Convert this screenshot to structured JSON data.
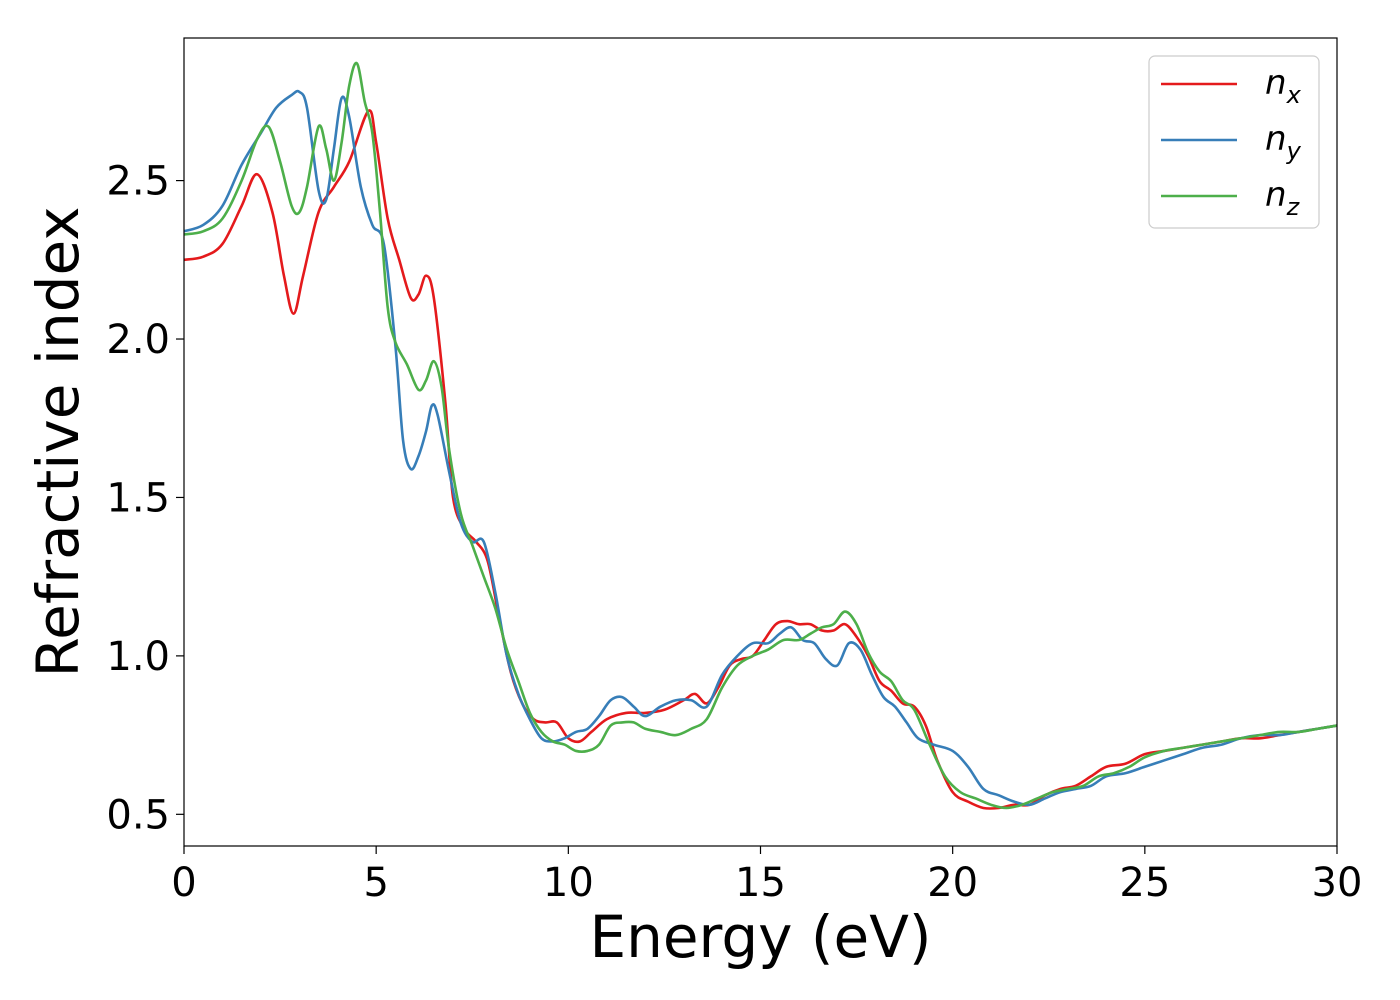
{
  "chart_data": {
    "type": "line",
    "title": "",
    "xlabel": "Energy (eV)",
    "ylabel": "Refractive index",
    "xlim": [
      0,
      30
    ],
    "ylim": [
      0.4,
      2.95
    ],
    "xticks": [
      0,
      5,
      10,
      15,
      20,
      25,
      30
    ],
    "xtick_labels": [
      "0",
      "5",
      "10",
      "15",
      "20",
      "25",
      "30"
    ],
    "yticks": [
      0.5,
      1.0,
      1.5,
      2.0,
      2.5
    ],
    "ytick_labels": [
      "0.5",
      "1.0",
      "1.5",
      "2.0",
      "2.5"
    ],
    "grid": false,
    "legend_position": "top-right",
    "series": [
      {
        "name": "n_x",
        "label_main": "n",
        "label_sub": "x",
        "color": "#e41a1c",
        "x": [
          0,
          0.5,
          1.0,
          1.5,
          1.9,
          2.3,
          2.6,
          2.85,
          3.1,
          3.5,
          3.9,
          4.3,
          4.8,
          5.0,
          5.3,
          5.6,
          5.9,
          6.1,
          6.3,
          6.5,
          6.8,
          7.0,
          7.3,
          7.6,
          7.9,
          8.2,
          8.5,
          8.8,
          9.1,
          9.4,
          9.7,
          10.0,
          10.3,
          10.6,
          11.0,
          11.5,
          12.0,
          12.5,
          13.0,
          13.3,
          13.6,
          13.9,
          14.2,
          14.5,
          14.8,
          15.1,
          15.4,
          15.7,
          16.0,
          16.3,
          16.6,
          16.9,
          17.2,
          17.5,
          17.8,
          18.1,
          18.4,
          18.7,
          19.0,
          19.3,
          19.6,
          20.0,
          20.4,
          20.8,
          21.2,
          21.6,
          22.0,
          22.4,
          22.8,
          23.2,
          23.6,
          24.0,
          24.5,
          25.0,
          25.5,
          26.0,
          26.5,
          27.0,
          27.5,
          28.0,
          28.5,
          29.0,
          29.5,
          30.0
        ],
        "y": [
          2.25,
          2.26,
          2.3,
          2.42,
          2.52,
          2.4,
          2.2,
          2.08,
          2.2,
          2.4,
          2.48,
          2.56,
          2.72,
          2.62,
          2.38,
          2.25,
          2.13,
          2.14,
          2.2,
          2.13,
          1.8,
          1.5,
          1.4,
          1.36,
          1.3,
          1.12,
          0.95,
          0.85,
          0.8,
          0.79,
          0.79,
          0.74,
          0.73,
          0.76,
          0.8,
          0.82,
          0.82,
          0.83,
          0.86,
          0.88,
          0.85,
          0.9,
          0.97,
          0.99,
          1.0,
          1.05,
          1.1,
          1.11,
          1.1,
          1.1,
          1.08,
          1.08,
          1.1,
          1.06,
          1.0,
          0.92,
          0.89,
          0.85,
          0.84,
          0.78,
          0.67,
          0.57,
          0.54,
          0.52,
          0.52,
          0.53,
          0.53,
          0.56,
          0.58,
          0.59,
          0.62,
          0.65,
          0.66,
          0.69,
          0.7,
          0.71,
          0.72,
          0.73,
          0.74,
          0.74,
          0.75,
          0.76,
          0.77,
          0.78
        ]
      },
      {
        "name": "n_y",
        "label_main": "n",
        "label_sub": "y",
        "color": "#377eb8",
        "x": [
          0,
          0.5,
          1.0,
          1.5,
          2.0,
          2.4,
          2.8,
          3.0,
          3.2,
          3.5,
          3.7,
          3.9,
          4.1,
          4.3,
          4.6,
          4.9,
          5.2,
          5.5,
          5.7,
          5.9,
          6.1,
          6.3,
          6.45,
          6.6,
          6.9,
          7.2,
          7.5,
          7.8,
          8.1,
          8.4,
          8.7,
          9.0,
          9.3,
          9.6,
          9.9,
          10.2,
          10.5,
          10.8,
          11.1,
          11.4,
          11.7,
          12.0,
          12.4,
          12.8,
          13.2,
          13.6,
          14.0,
          14.4,
          14.8,
          15.2,
          15.5,
          15.8,
          16.1,
          16.4,
          16.7,
          17.0,
          17.3,
          17.6,
          17.9,
          18.2,
          18.5,
          18.8,
          19.1,
          19.5,
          20.0,
          20.4,
          20.8,
          21.2,
          21.6,
          22.0,
          22.4,
          22.8,
          23.2,
          23.6,
          24.0,
          24.5,
          25.0,
          25.5,
          26.0,
          26.5,
          27.0,
          27.5,
          28.0,
          28.5,
          29.0,
          29.5,
          30.0
        ],
        "y": [
          2.34,
          2.36,
          2.42,
          2.55,
          2.65,
          2.73,
          2.77,
          2.78,
          2.73,
          2.47,
          2.44,
          2.6,
          2.76,
          2.7,
          2.48,
          2.36,
          2.3,
          1.98,
          1.68,
          1.59,
          1.63,
          1.71,
          1.79,
          1.76,
          1.58,
          1.42,
          1.36,
          1.36,
          1.2,
          1.0,
          0.88,
          0.8,
          0.74,
          0.73,
          0.74,
          0.76,
          0.77,
          0.81,
          0.86,
          0.87,
          0.84,
          0.81,
          0.84,
          0.86,
          0.86,
          0.84,
          0.94,
          1.0,
          1.04,
          1.04,
          1.07,
          1.09,
          1.05,
          1.04,
          0.99,
          0.97,
          1.04,
          1.02,
          0.94,
          0.87,
          0.84,
          0.79,
          0.74,
          0.72,
          0.7,
          0.65,
          0.58,
          0.56,
          0.54,
          0.53,
          0.55,
          0.57,
          0.58,
          0.59,
          0.62,
          0.63,
          0.65,
          0.67,
          0.69,
          0.71,
          0.72,
          0.74,
          0.75,
          0.75,
          0.76,
          0.77,
          0.78
        ]
      },
      {
        "name": "n_z",
        "label_main": "n",
        "label_sub": "z",
        "color": "#4daf4a",
        "x": [
          0,
          0.5,
          1.0,
          1.5,
          1.9,
          2.2,
          2.5,
          2.8,
          3.0,
          3.2,
          3.5,
          3.7,
          3.9,
          4.1,
          4.3,
          4.5,
          4.7,
          4.9,
          5.1,
          5.3,
          5.5,
          5.8,
          6.1,
          6.3,
          6.5,
          6.7,
          6.9,
          7.2,
          7.5,
          7.8,
          8.1,
          8.4,
          8.7,
          9.0,
          9.3,
          9.6,
          9.9,
          10.2,
          10.5,
          10.8,
          11.1,
          11.4,
          11.7,
          12.0,
          12.4,
          12.8,
          13.2,
          13.6,
          14.0,
          14.4,
          14.8,
          15.2,
          15.6,
          16.0,
          16.3,
          16.6,
          16.9,
          17.2,
          17.5,
          17.8,
          18.1,
          18.4,
          18.7,
          19.0,
          19.4,
          19.8,
          20.2,
          20.6,
          21.0,
          21.4,
          21.8,
          22.2,
          22.6,
          23.0,
          23.4,
          23.8,
          24.2,
          24.6,
          25.0,
          25.5,
          26.0,
          26.5,
          27.0,
          27.5,
          28.0,
          28.5,
          29.0,
          29.5,
          30.0
        ],
        "y": [
          2.33,
          2.34,
          2.38,
          2.5,
          2.63,
          2.67,
          2.56,
          2.42,
          2.4,
          2.48,
          2.67,
          2.6,
          2.5,
          2.62,
          2.8,
          2.87,
          2.75,
          2.65,
          2.4,
          2.1,
          1.99,
          1.92,
          1.84,
          1.87,
          1.93,
          1.85,
          1.65,
          1.45,
          1.35,
          1.25,
          1.15,
          1.02,
          0.92,
          0.82,
          0.76,
          0.73,
          0.72,
          0.7,
          0.7,
          0.72,
          0.78,
          0.79,
          0.79,
          0.77,
          0.76,
          0.75,
          0.77,
          0.8,
          0.9,
          0.97,
          1.0,
          1.02,
          1.05,
          1.05,
          1.07,
          1.09,
          1.1,
          1.14,
          1.1,
          1.01,
          0.95,
          0.92,
          0.86,
          0.83,
          0.72,
          0.62,
          0.57,
          0.55,
          0.53,
          0.52,
          0.53,
          0.55,
          0.57,
          0.58,
          0.59,
          0.62,
          0.63,
          0.65,
          0.68,
          0.7,
          0.71,
          0.72,
          0.73,
          0.74,
          0.75,
          0.76,
          0.76,
          0.77,
          0.78
        ]
      }
    ]
  }
}
